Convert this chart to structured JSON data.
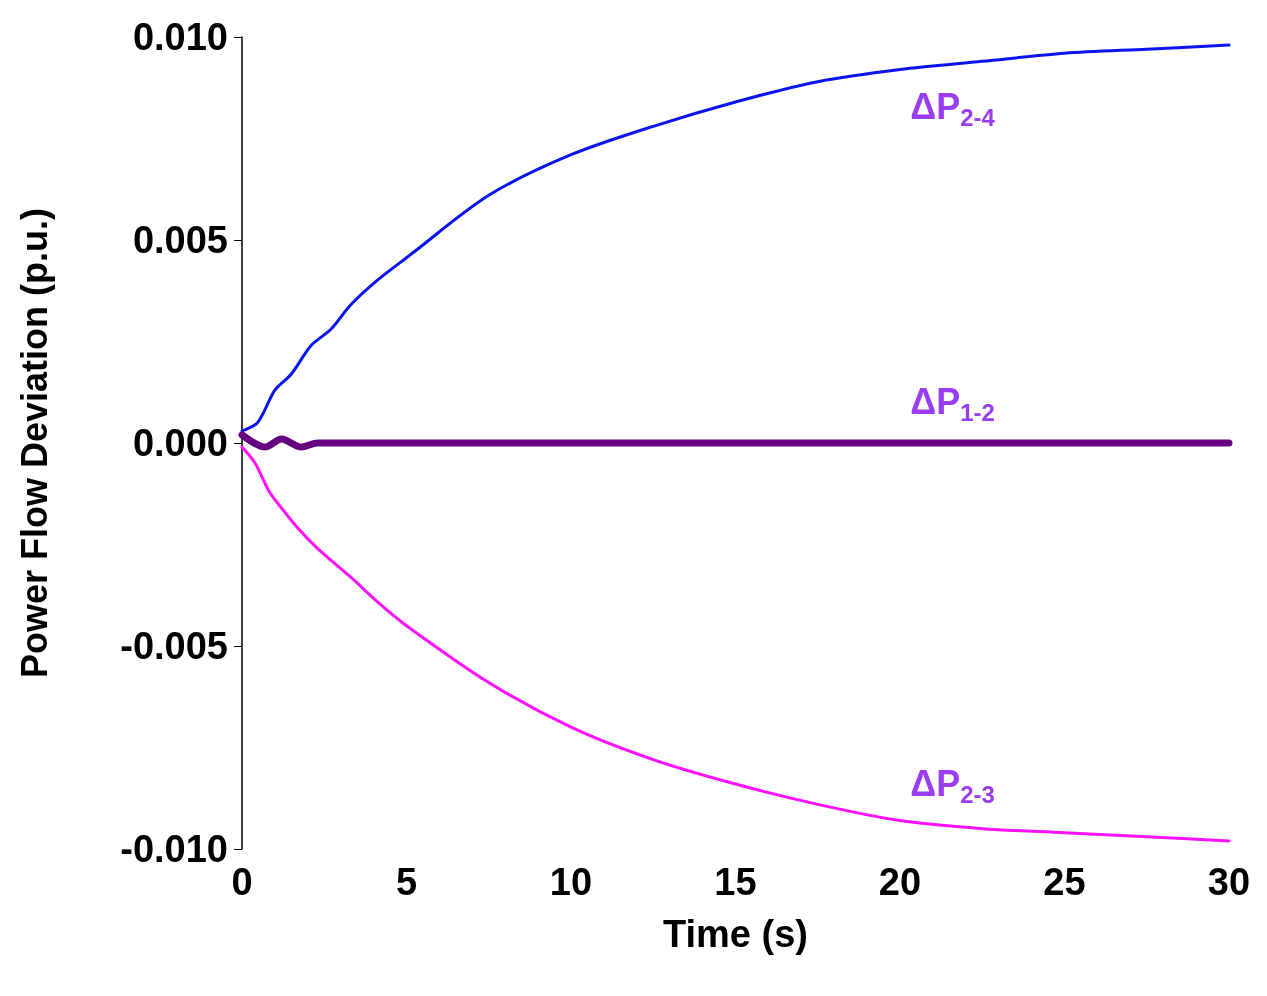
{
  "chart_data": {
    "type": "line",
    "xlabel": "Time (s)",
    "ylabel": "Power Flow Deviation (p.u.)",
    "xlim": [
      0,
      30
    ],
    "xticks": [
      0,
      5,
      10,
      15,
      20,
      25,
      30
    ],
    "ylim": [
      -0.01,
      0.01
    ],
    "yticks": [
      {
        "value": -0.01,
        "label": "-0.010"
      },
      {
        "value": -0.005,
        "label": "-0.005"
      },
      {
        "value": 0,
        "label": "0.000"
      },
      {
        "value": 0.005,
        "label": "0.005"
      },
      {
        "value": 0.01,
        "label": "0.010"
      }
    ],
    "grid": false,
    "marker": "none",
    "line_style": "solid",
    "series": [
      {
        "name": "ΔP$_{2-4}$",
        "color": "#0a14f0",
        "x": [
          0,
          0.47,
          1,
          1.5,
          2.1,
          2.7,
          3.3,
          4.1,
          5.06,
          7.5,
          10,
          12.5,
          15,
          17.5,
          20,
          22.5,
          25,
          27.5,
          30
        ],
        "values": [
          0.0003,
          0.0005,
          0.0013,
          0.0017,
          0.0024,
          0.0028,
          0.0034,
          0.004,
          0.0046,
          0.0061,
          0.0071,
          0.0078,
          0.0084,
          0.0089,
          0.0092,
          0.0094,
          0.0096,
          0.0097,
          0.0098
        ]
      },
      {
        "name": "ΔP$_{1-2}$",
        "color": "#660080",
        "x": [
          0,
          0.7,
          1.2,
          1.8,
          2.3,
          3,
          30
        ],
        "values": [
          0.0002,
          -0.0001,
          0.0001,
          -0.0001,
          0,
          0,
          0
        ]
      },
      {
        "name": "ΔP$_{2-3}$",
        "color": "#ff10ff",
        "x": [
          0,
          0.4,
          0.83,
          1.2,
          1.7,
          2.3,
          3.3,
          4.1,
          5,
          7.5,
          10,
          12.5,
          15,
          17.5,
          20,
          22.5,
          25,
          27.5,
          30
        ],
        "values": [
          -0.0001,
          -0.0005,
          -0.0012,
          -0.0016,
          -0.0021,
          -0.0026,
          -0.0033,
          -0.0039,
          -0.0045,
          -0.0059,
          -0.007,
          -0.0078,
          -0.0084,
          -0.0089,
          -0.0093,
          -0.0095,
          -0.0096,
          -0.0097,
          -0.0098
        ]
      }
    ]
  }
}
